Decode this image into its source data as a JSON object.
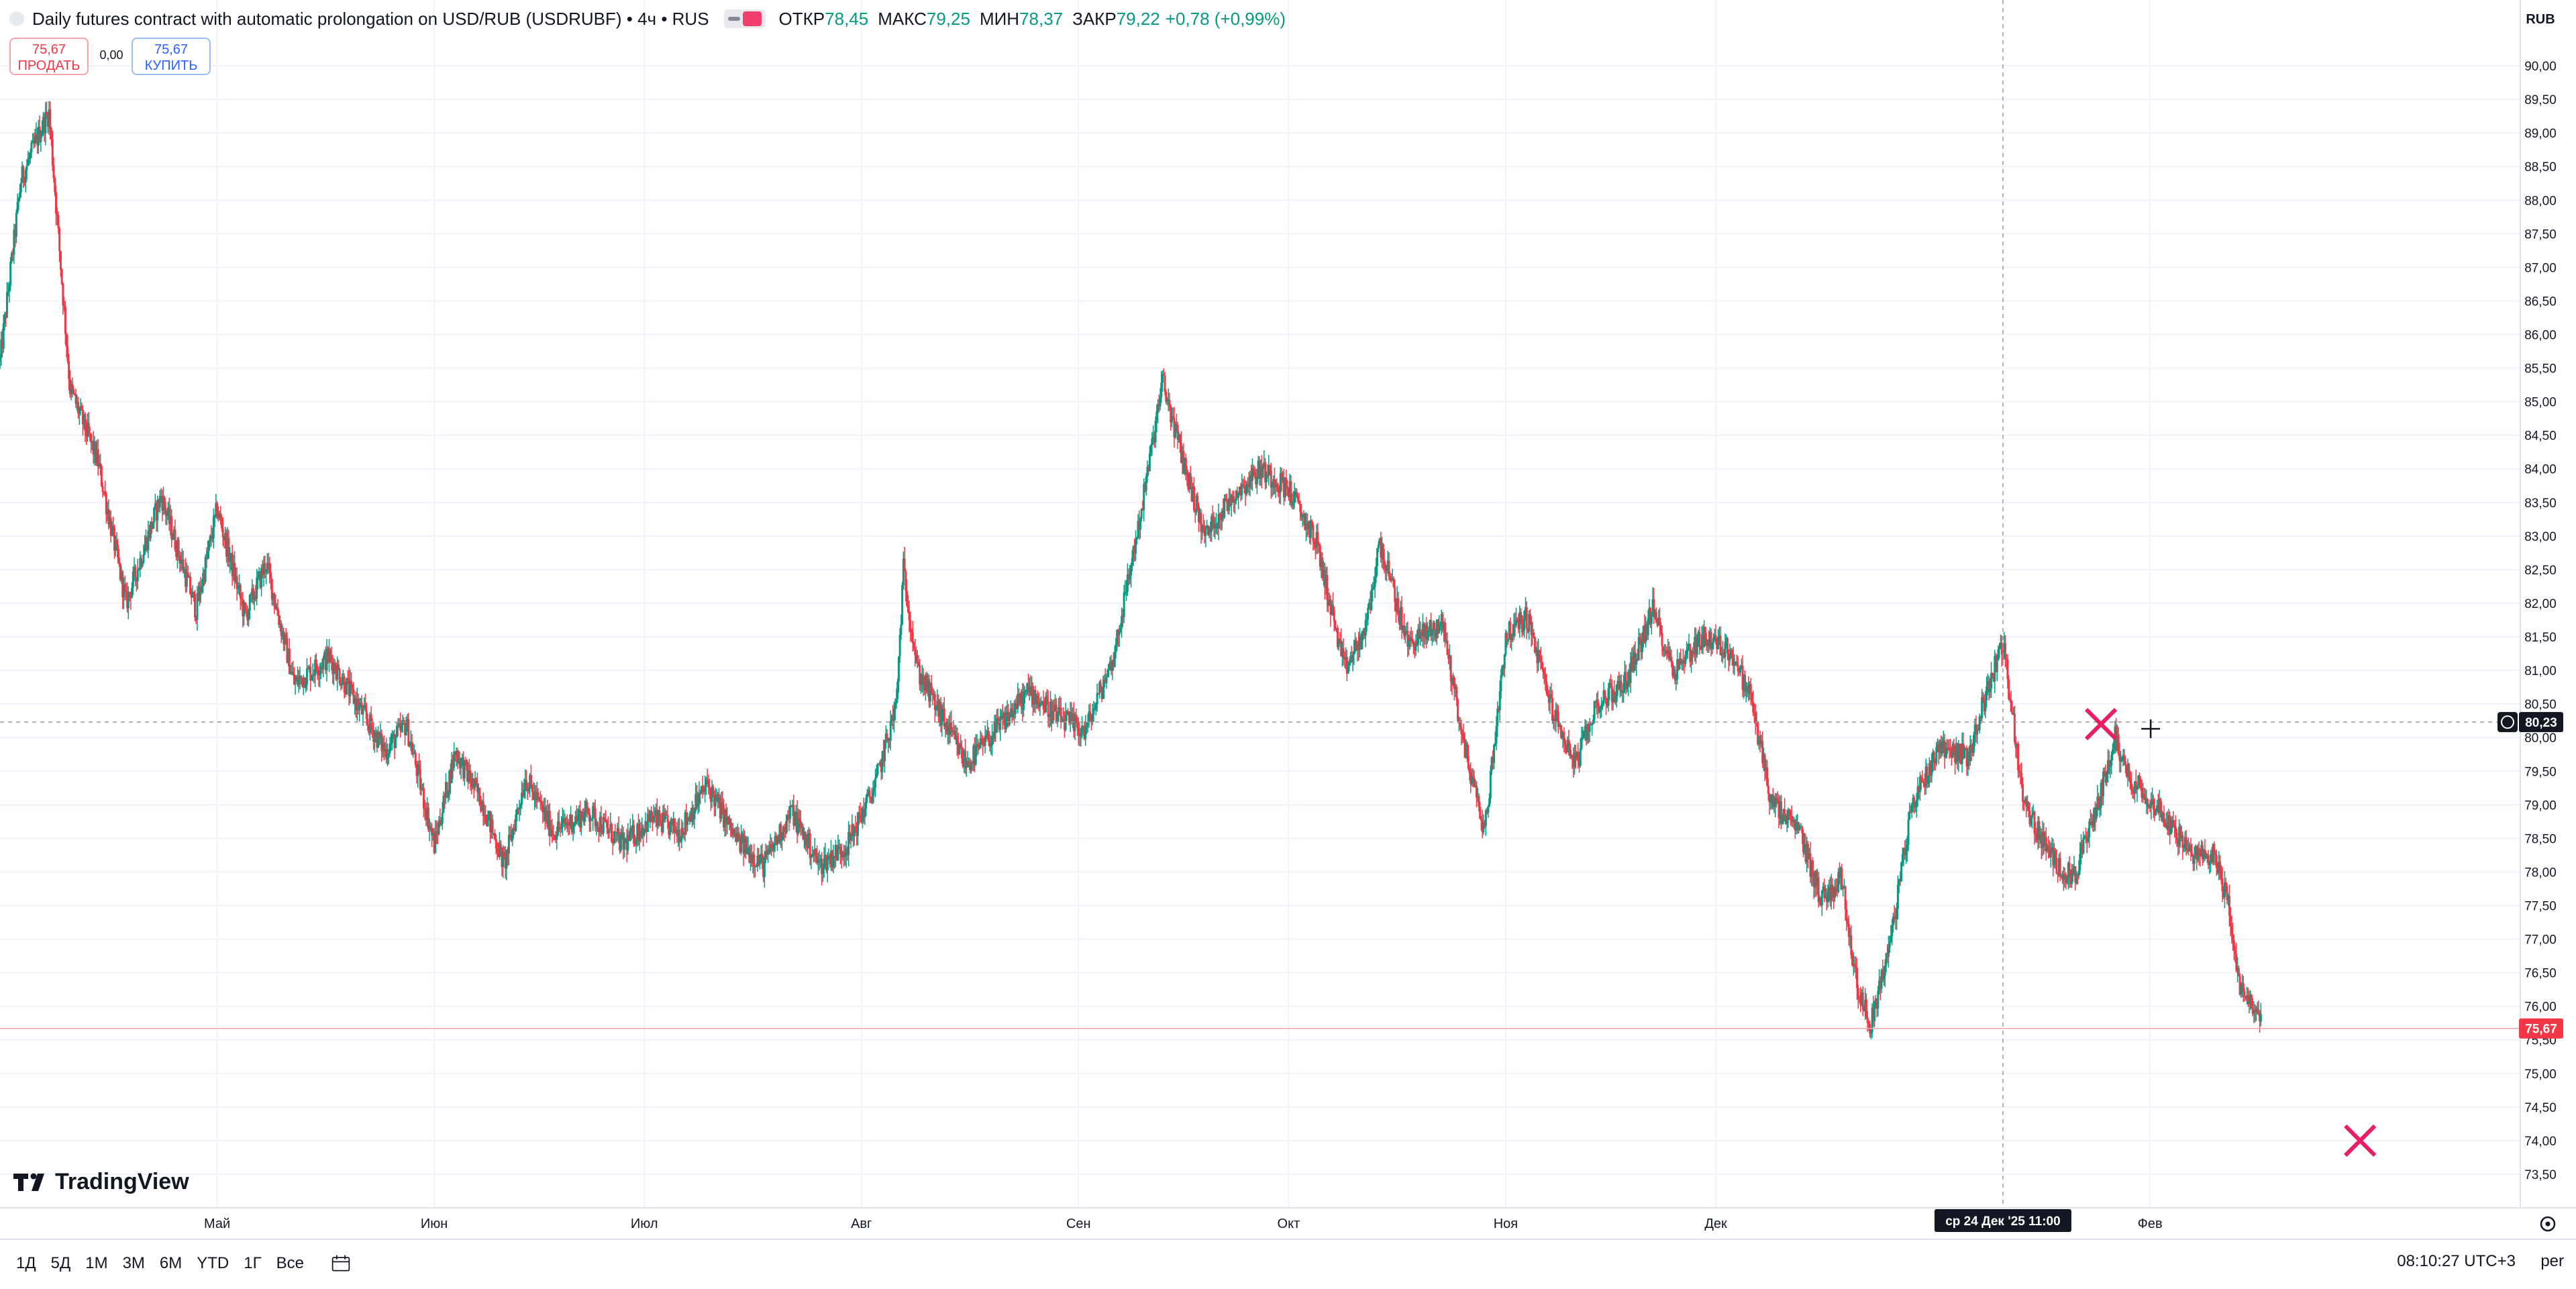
{
  "legend": {
    "title": "Daily futures contract with automatic prolongation on USD/RUB (USDRUBF) • 4ч • RUS",
    "open_label": "ОТКР",
    "open": "78,45",
    "high_label": "МАКС",
    "high": "79,25",
    "low_label": "МИН",
    "low": "78,37",
    "close_label": "ЗАКР",
    "close": "79,22",
    "change": "+0,78 (+0,99%)"
  },
  "trade": {
    "sell_price": "75,67",
    "sell_label": "ПРОДАТЬ",
    "spread": "0,00",
    "buy_price": "75,67",
    "buy_label": "КУПИТЬ"
  },
  "logo_text": "TradingView",
  "currency": "RUB",
  "crosshair": {
    "price": "80,23",
    "time": "ср 24 Дек '25   11:00",
    "y": 80.23
  },
  "last_price": {
    "label": "75,67",
    "value": 75.67
  },
  "ranges": [
    "1Д",
    "5Д",
    "1М",
    "3М",
    "6М",
    "YTD",
    "1Г",
    "Все"
  ],
  "clock": "08:10:27 UTC+3",
  "per_label": "per",
  "colors": {
    "up": "#089981",
    "down": "#f23645",
    "grid": "#f0f3fa",
    "axis_text": "#131722"
  },
  "chart_data": {
    "type": "candlestick",
    "title": "Daily futures contract with automatic prolongation on USD/RUB (USDRUBF)",
    "interval": "4ч",
    "xlabel": "",
    "ylabel": "",
    "ylim": [
      73.0,
      90.5
    ],
    "y_ticks": [
      73.5,
      74.0,
      74.5,
      75.0,
      75.5,
      76.0,
      76.5,
      77.0,
      77.5,
      78.0,
      78.5,
      79.0,
      79.5,
      80.0,
      80.5,
      81.0,
      81.5,
      82.0,
      82.5,
      83.0,
      83.5,
      84.0,
      84.5,
      85.0,
      85.5,
      86.0,
      86.5,
      87.0,
      87.5,
      88.0,
      88.5,
      89.0,
      89.5,
      90.0
    ],
    "y_tick_labels": [
      "73,50",
      "74,00",
      "74,50",
      "75,00",
      "75,50",
      "76,00",
      "76,50",
      "77,00",
      "77,50",
      "78,00",
      "78,50",
      "79,00",
      "79,50",
      "80,00",
      "80,50",
      "81,00",
      "81,50",
      "82,00",
      "82,50",
      "83,00",
      "83,50",
      "84,00",
      "84,50",
      "85,00",
      "85,50",
      "86,00",
      "86,50",
      "87,00",
      "87,50",
      "88,00",
      "88,50",
      "89,00",
      "89,50",
      "90,00"
    ],
    "x_ticks": [
      {
        "label": "Май",
        "date": "2025-05-01"
      },
      {
        "label": "Июн",
        "date": "2025-06-01"
      },
      {
        "label": "Июл",
        "date": "2025-07-01"
      },
      {
        "label": "Авг",
        "date": "2025-08-01"
      },
      {
        "label": "Сен",
        "date": "2025-09-01"
      },
      {
        "label": "Окт",
        "date": "2025-10-01"
      },
      {
        "label": "Ноя",
        "date": "2025-11-01"
      },
      {
        "label": "Дек",
        "date": "2025-12-01"
      },
      {
        "label": "Фев",
        "date": "2026-02-01"
      }
    ],
    "x_range": [
      "2025-03-31",
      "2026-02-19"
    ],
    "path": [
      {
        "date": "2025-03-31",
        "price": 85.6
      },
      {
        "date": "2025-04-03",
        "price": 88.3
      },
      {
        "date": "2025-04-06",
        "price": 89.1
      },
      {
        "date": "2025-04-07",
        "price": 89.3
      },
      {
        "date": "2025-04-10",
        "price": 85.2
      },
      {
        "date": "2025-04-14",
        "price": 84.1
      },
      {
        "date": "2025-04-18",
        "price": 82.0
      },
      {
        "date": "2025-04-23",
        "price": 83.6
      },
      {
        "date": "2025-04-28",
        "price": 81.9
      },
      {
        "date": "2025-05-01",
        "price": 83.4
      },
      {
        "date": "2025-05-05",
        "price": 81.8
      },
      {
        "date": "2025-05-08",
        "price": 82.6
      },
      {
        "date": "2025-05-12",
        "price": 80.8
      },
      {
        "date": "2025-05-17",
        "price": 81.2
      },
      {
        "date": "2025-05-21",
        "price": 80.5
      },
      {
        "date": "2025-05-25",
        "price": 79.8
      },
      {
        "date": "2025-05-28",
        "price": 80.2
      },
      {
        "date": "2025-06-01",
        "price": 78.4
      },
      {
        "date": "2025-06-04",
        "price": 79.8
      },
      {
        "date": "2025-06-08",
        "price": 79.0
      },
      {
        "date": "2025-06-11",
        "price": 78.1
      },
      {
        "date": "2025-06-14",
        "price": 79.4
      },
      {
        "date": "2025-06-18",
        "price": 78.6
      },
      {
        "date": "2025-06-23",
        "price": 78.9
      },
      {
        "date": "2025-06-28",
        "price": 78.4
      },
      {
        "date": "2025-07-02",
        "price": 78.8
      },
      {
        "date": "2025-07-06",
        "price": 78.6
      },
      {
        "date": "2025-07-10",
        "price": 79.3
      },
      {
        "date": "2025-07-14",
        "price": 78.5
      },
      {
        "date": "2025-07-18",
        "price": 78.1
      },
      {
        "date": "2025-07-22",
        "price": 78.9
      },
      {
        "date": "2025-07-26",
        "price": 78.1
      },
      {
        "date": "2025-07-30",
        "price": 78.4
      },
      {
        "date": "2025-08-03",
        "price": 79.3
      },
      {
        "date": "2025-08-06",
        "price": 80.5
      },
      {
        "date": "2025-08-07",
        "price": 82.5
      },
      {
        "date": "2025-08-09",
        "price": 81.0
      },
      {
        "date": "2025-08-12",
        "price": 80.4
      },
      {
        "date": "2025-08-16",
        "price": 79.6
      },
      {
        "date": "2025-08-21",
        "price": 80.2
      },
      {
        "date": "2025-08-25",
        "price": 80.7
      },
      {
        "date": "2025-08-29",
        "price": 80.3
      },
      {
        "date": "2025-09-02",
        "price": 80.1
      },
      {
        "date": "2025-09-06",
        "price": 81.2
      },
      {
        "date": "2025-09-10",
        "price": 83.4
      },
      {
        "date": "2025-09-13",
        "price": 85.3
      },
      {
        "date": "2025-09-16",
        "price": 84.1
      },
      {
        "date": "2025-09-19",
        "price": 83.0
      },
      {
        "date": "2025-09-23",
        "price": 83.6
      },
      {
        "date": "2025-09-27",
        "price": 84.0
      },
      {
        "date": "2025-10-01",
        "price": 83.7
      },
      {
        "date": "2025-10-05",
        "price": 82.9
      },
      {
        "date": "2025-10-09",
        "price": 81.0
      },
      {
        "date": "2025-10-12",
        "price": 81.6
      },
      {
        "date": "2025-10-14",
        "price": 82.9
      },
      {
        "date": "2025-10-18",
        "price": 81.4
      },
      {
        "date": "2025-10-23",
        "price": 81.7
      },
      {
        "date": "2025-10-26",
        "price": 79.9
      },
      {
        "date": "2025-10-29",
        "price": 78.6
      },
      {
        "date": "2025-11-01",
        "price": 81.5
      },
      {
        "date": "2025-11-04",
        "price": 81.8
      },
      {
        "date": "2025-11-08",
        "price": 80.3
      },
      {
        "date": "2025-11-11",
        "price": 79.6
      },
      {
        "date": "2025-11-14",
        "price": 80.5
      },
      {
        "date": "2025-11-18",
        "price": 80.8
      },
      {
        "date": "2025-11-22",
        "price": 81.9
      },
      {
        "date": "2025-11-25",
        "price": 81.0
      },
      {
        "date": "2025-11-29",
        "price": 81.5
      },
      {
        "date": "2025-12-03",
        "price": 81.3
      },
      {
        "date": "2025-12-06",
        "price": 80.6
      },
      {
        "date": "2025-12-09",
        "price": 79.0
      },
      {
        "date": "2025-12-13",
        "price": 78.6
      },
      {
        "date": "2025-12-16",
        "price": 77.6
      },
      {
        "date": "2025-12-19",
        "price": 77.9
      },
      {
        "date": "2025-12-21",
        "price": 76.4
      },
      {
        "date": "2025-12-23",
        "price": 75.7
      },
      {
        "date": "2025-12-26",
        "price": 77.0
      },
      {
        "date": "2025-12-29",
        "price": 79.0
      },
      {
        "date": "2026-01-02",
        "price": 79.9
      },
      {
        "date": "2026-01-06",
        "price": 79.7
      },
      {
        "date": "2026-01-09",
        "price": 80.8
      },
      {
        "date": "2026-01-11",
        "price": 81.4
      },
      {
        "date": "2026-01-14",
        "price": 79.0
      },
      {
        "date": "2026-01-18",
        "price": 78.2
      },
      {
        "date": "2026-01-21",
        "price": 77.9
      },
      {
        "date": "2026-01-24",
        "price": 78.8
      },
      {
        "date": "2026-01-27",
        "price": 80.0
      },
      {
        "date": "2026-01-29",
        "price": 79.4
      },
      {
        "date": "2026-02-01",
        "price": 79.1
      },
      {
        "date": "2026-02-04",
        "price": 78.7
      },
      {
        "date": "2026-02-07",
        "price": 78.2
      },
      {
        "date": "2026-02-10",
        "price": 78.3
      },
      {
        "date": "2026-02-12",
        "price": 77.6
      },
      {
        "date": "2026-02-14",
        "price": 76.2
      },
      {
        "date": "2026-02-17",
        "price": 75.8
      }
    ],
    "markers": [
      {
        "kind": "x",
        "date": "2026-01-25",
        "price": 80.2
      },
      {
        "kind": "x",
        "date": "2026-03-03",
        "price": 74.0
      }
    ]
  }
}
